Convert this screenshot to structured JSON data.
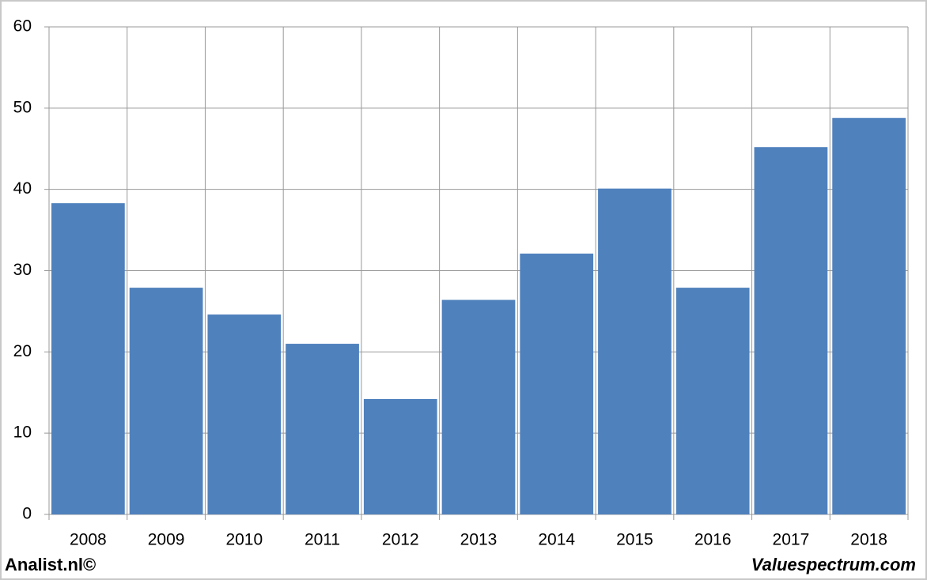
{
  "chart_data": {
    "type": "bar",
    "categories": [
      "2008",
      "2009",
      "2010",
      "2011",
      "2012",
      "2013",
      "2014",
      "2015",
      "2016",
      "2017",
      "2018"
    ],
    "values": [
      38.3,
      27.9,
      24.6,
      21.0,
      14.2,
      26.4,
      32.1,
      40.1,
      27.9,
      45.2,
      48.8
    ],
    "color": "#4f81bd",
    "ylim": [
      0,
      60
    ],
    "yticks": [
      0,
      10,
      20,
      30,
      40,
      50,
      60
    ],
    "grid": true
  },
  "footer": {
    "left": "Analist.nl©",
    "right": "Valuespectrum.com"
  }
}
